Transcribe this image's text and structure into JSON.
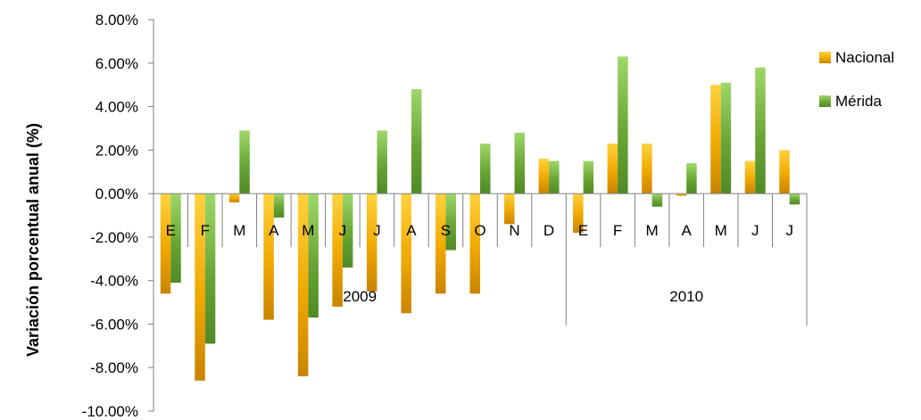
{
  "chart_data": {
    "type": "bar",
    "ylabel": "Variación porcentual anual (%)",
    "ylim": [
      -10,
      8
    ],
    "yticks": [
      8,
      6,
      4,
      2,
      0,
      -2,
      -4,
      -6,
      -8,
      -10
    ],
    "ytick_labels": [
      "8.00%",
      "6.00%",
      "4.00%",
      "2.00%",
      "0.00%",
      "-2.00%",
      "-4.00%",
      "-6.00%",
      "-8.00%",
      "-10.00%"
    ],
    "categories": [
      "E",
      "F",
      "M",
      "A",
      "M",
      "J",
      "J",
      "A",
      "S",
      "O",
      "N",
      "D",
      "E",
      "F",
      "M",
      "A",
      "M",
      "J",
      "J"
    ],
    "groups": [
      {
        "label": "2009",
        "start": 0,
        "end": 11
      },
      {
        "label": "2010",
        "start": 12,
        "end": 18
      }
    ],
    "series": [
      {
        "name": "Nacional",
        "color": "#f0a800",
        "values": [
          -4.6,
          -8.6,
          -0.4,
          -5.8,
          -8.4,
          -5.2,
          -4.5,
          -5.5,
          -4.6,
          -4.6,
          -1.4,
          1.6,
          -1.8,
          2.3,
          2.3,
          -0.1,
          5.0,
          1.5,
          2.0
        ]
      },
      {
        "name": "Mérida",
        "color": "#6aa535",
        "values": [
          -4.1,
          -6.9,
          2.9,
          -1.1,
          -5.7,
          -3.4,
          2.9,
          4.8,
          -2.6,
          2.3,
          2.8,
          1.5,
          1.5,
          6.3,
          -0.6,
          1.4,
          5.1,
          5.8,
          -0.5
        ]
      }
    ],
    "legend_position": "right",
    "grid": false
  }
}
